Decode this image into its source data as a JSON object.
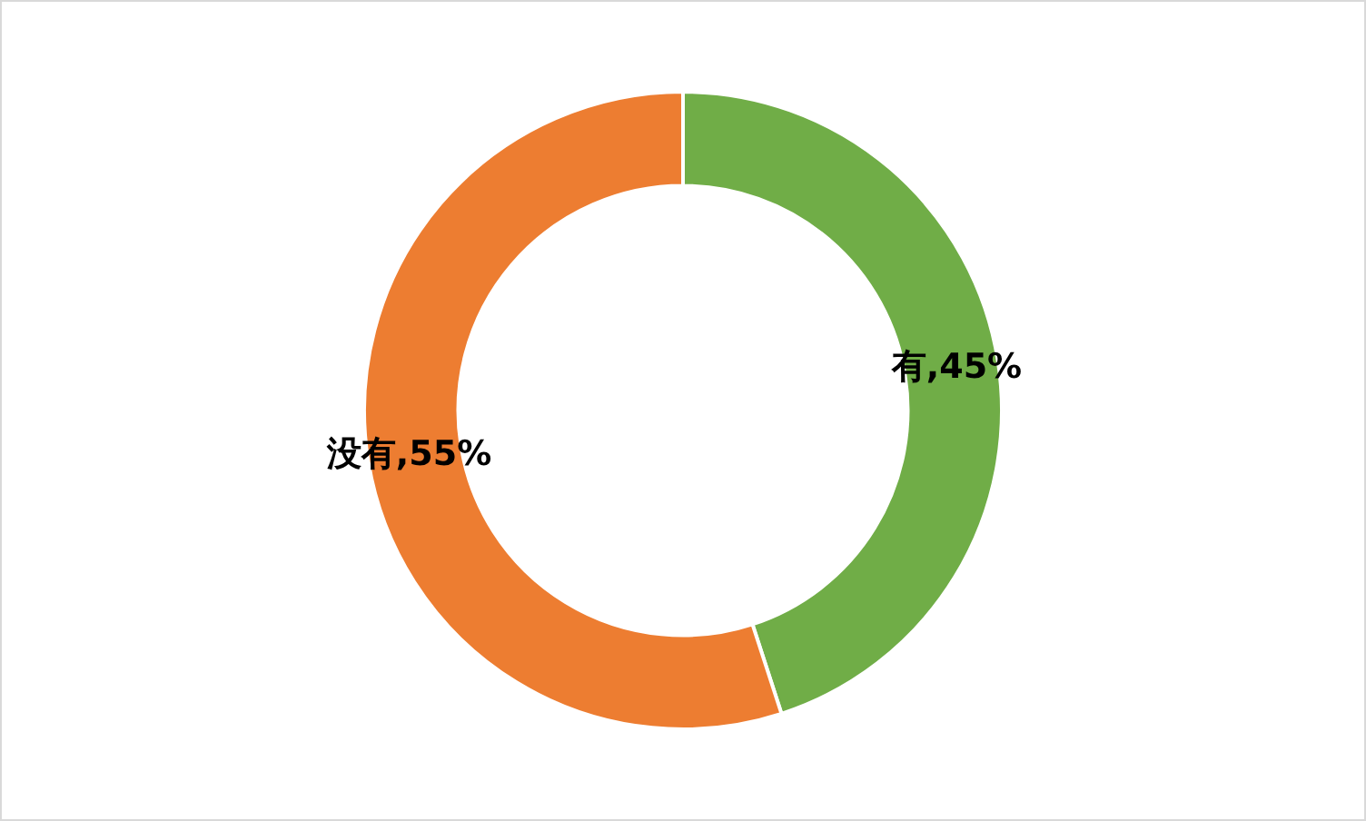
{
  "chart_data": {
    "type": "donut",
    "categories": [
      "有",
      "没有"
    ],
    "values": [
      45,
      55
    ],
    "colors": [
      "#70ad47",
      "#ed7d31"
    ],
    "value_labels": [
      "45%",
      "55%"
    ],
    "legend": false
  }
}
